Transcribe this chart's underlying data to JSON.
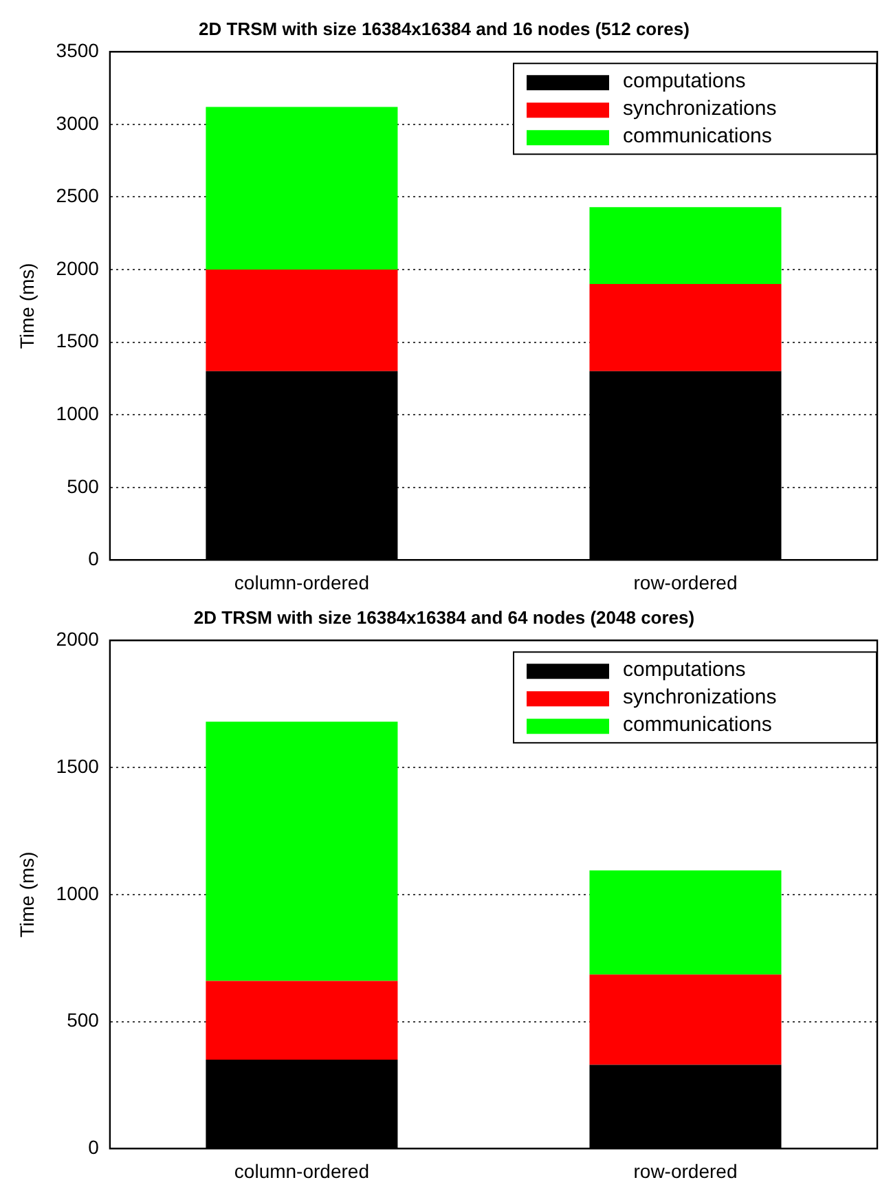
{
  "chart_data": [
    {
      "type": "bar",
      "title": "2D TRSM with size 16384x16384 and 16 nodes (512 cores)",
      "ylabel": "Time (ms)",
      "categories": [
        "column-ordered",
        "row-ordered"
      ],
      "stacked": true,
      "series": [
        {
          "name": "computations",
          "color": "#000000",
          "values": [
            1300,
            1300
          ]
        },
        {
          "name": "synchronizations",
          "color": "#ff0000",
          "values": [
            700,
            600
          ]
        },
        {
          "name": "communications",
          "color": "#00ff00",
          "values": [
            1120,
            530
          ]
        }
      ],
      "ylim": [
        0,
        3500
      ],
      "yticks": [
        0,
        500,
        1000,
        1500,
        2000,
        2500,
        3000,
        3500
      ],
      "grid": "y",
      "legend": "top right"
    },
    {
      "type": "bar",
      "title": "2D TRSM with size 16384x16384 and 64 nodes (2048 cores)",
      "ylabel": "Time (ms)",
      "categories": [
        "column-ordered",
        "row-ordered"
      ],
      "stacked": true,
      "series": [
        {
          "name": "computations",
          "color": "#000000",
          "values": [
            350,
            330
          ]
        },
        {
          "name": "synchronizations",
          "color": "#ff0000",
          "values": [
            310,
            355
          ]
        },
        {
          "name": "communications",
          "color": "#00ff00",
          "values": [
            1020,
            410
          ]
        }
      ],
      "ylim": [
        0,
        2000
      ],
      "yticks": [
        0,
        500,
        1000,
        1500,
        2000
      ],
      "grid": "y",
      "legend": "top right"
    }
  ]
}
